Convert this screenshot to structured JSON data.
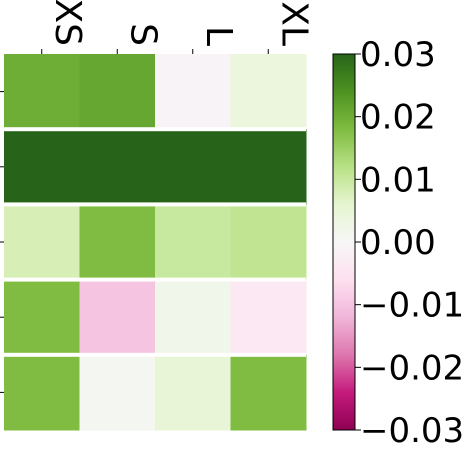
{
  "chart_data": {
    "type": "heatmap",
    "x_labels": [
      "XS",
      "S",
      "L",
      "XL"
    ],
    "rows": [
      [
        0.02,
        0.021,
        -0.001,
        0.004
      ],
      [
        0.03,
        0.03,
        0.03,
        0.03
      ],
      [
        0.008,
        0.018,
        0.01,
        0.011
      ],
      [
        0.018,
        -0.01,
        0.002,
        -0.004
      ],
      [
        0.018,
        0.001,
        0.005,
        0.018
      ]
    ],
    "row_separators": [
      1,
      2,
      3,
      4
    ],
    "colormap": "PiYG",
    "vmin": -0.03,
    "vmax": 0.03,
    "colorbar": {
      "ticks": [
        "0.03",
        "0.02",
        "0.01",
        "0.00",
        "−0.01",
        "−0.02",
        "−0.03"
      ],
      "tick_values": [
        0.03,
        0.02,
        0.01,
        0.0,
        -0.01,
        -0.02,
        -0.03
      ]
    },
    "separator_color": "#ffffff",
    "colors": {
      "neg_max": "#8e0152",
      "neg_mid": "#de77ae",
      "neutral": "#f7f7f7",
      "pos_mid": "#7fbc41",
      "pos_max": "#276419"
    }
  }
}
